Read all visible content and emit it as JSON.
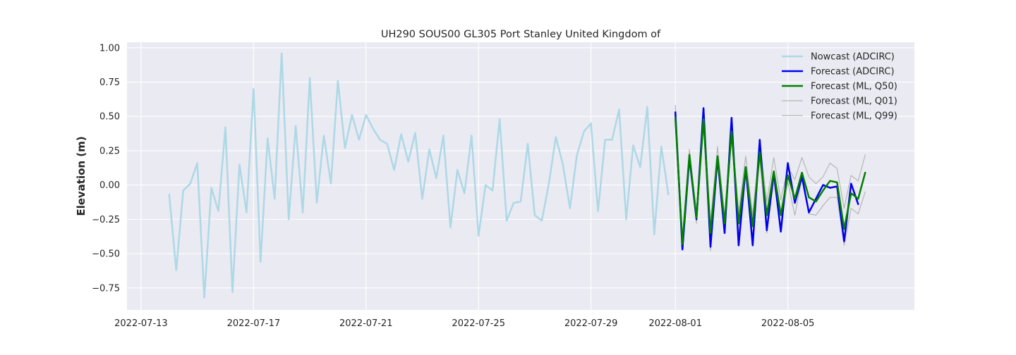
{
  "chart_data": {
    "type": "line",
    "title": "UH290 SOUS00 GL305 Port Stanley United Kingdom of",
    "xlabel": "",
    "ylabel": "Elevation (m)",
    "xlim": [
      "2022-07-12T12:00",
      "2022-08-09T12:00"
    ],
    "ylim": [
      -0.91,
      1.04
    ],
    "x_ticks": [
      "2022-07-13",
      "2022-07-17",
      "2022-07-21",
      "2022-07-25",
      "2022-07-29",
      "2022-08-01",
      "2022-08-05"
    ],
    "y_ticks": [
      1.0,
      0.75,
      0.5,
      0.25,
      0.0,
      -0.25,
      -0.5,
      -0.75
    ],
    "y_tick_labels": [
      "1.00",
      "0.75",
      "0.50",
      "0.25",
      "0.00",
      "−0.25",
      "−0.50",
      "−0.75"
    ],
    "grid": true,
    "legend_position": "top-right",
    "series": [
      {
        "name": "Nowcast (ADCIRC)",
        "color": "#add8e6",
        "x": [
          "2022-07-14T00:00",
          "2022-07-14T06:00",
          "2022-07-14T12:00",
          "2022-07-14T18:00",
          "2022-07-15T00:00",
          "2022-07-15T06:00",
          "2022-07-15T12:00",
          "2022-07-15T18:00",
          "2022-07-16T00:00",
          "2022-07-16T06:00",
          "2022-07-16T12:00",
          "2022-07-16T18:00",
          "2022-07-17T00:00",
          "2022-07-17T06:00",
          "2022-07-17T12:00",
          "2022-07-17T18:00",
          "2022-07-18T00:00",
          "2022-07-18T06:00",
          "2022-07-18T12:00",
          "2022-07-18T18:00",
          "2022-07-19T00:00",
          "2022-07-19T06:00",
          "2022-07-19T12:00",
          "2022-07-19T18:00",
          "2022-07-20T00:00",
          "2022-07-20T06:00",
          "2022-07-20T12:00",
          "2022-07-20T18:00",
          "2022-07-21T00:00",
          "2022-07-21T06:00",
          "2022-07-21T12:00",
          "2022-07-21T18:00",
          "2022-07-22T00:00",
          "2022-07-22T06:00",
          "2022-07-22T12:00",
          "2022-07-22T18:00",
          "2022-07-23T00:00",
          "2022-07-23T06:00",
          "2022-07-23T12:00",
          "2022-07-23T18:00",
          "2022-07-24T00:00",
          "2022-07-24T06:00",
          "2022-07-24T12:00",
          "2022-07-24T18:00",
          "2022-07-25T00:00",
          "2022-07-25T06:00",
          "2022-07-25T12:00",
          "2022-07-25T18:00",
          "2022-07-26T00:00",
          "2022-07-26T06:00",
          "2022-07-26T12:00",
          "2022-07-26T18:00",
          "2022-07-27T00:00",
          "2022-07-27T06:00",
          "2022-07-27T12:00",
          "2022-07-27T18:00",
          "2022-07-28T00:00",
          "2022-07-28T06:00",
          "2022-07-28T12:00",
          "2022-07-28T18:00",
          "2022-07-29T00:00",
          "2022-07-29T06:00",
          "2022-07-29T12:00",
          "2022-07-29T18:00",
          "2022-07-30T00:00",
          "2022-07-30T06:00",
          "2022-07-30T12:00",
          "2022-07-30T18:00",
          "2022-07-31T00:00",
          "2022-07-31T06:00",
          "2022-07-31T12:00",
          "2022-07-31T18:00"
        ],
        "values": [
          -0.07,
          -0.62,
          -0.04,
          0.01,
          0.16,
          -0.82,
          -0.02,
          -0.19,
          0.42,
          -0.78,
          0.15,
          -0.2,
          0.7,
          -0.56,
          0.34,
          -0.1,
          0.96,
          -0.25,
          0.43,
          -0.2,
          0.78,
          -0.13,
          0.36,
          0.01,
          0.76,
          0.27,
          0.51,
          0.33,
          0.51,
          0.41,
          0.33,
          0.3,
          0.11,
          0.37,
          0.17,
          0.38,
          -0.1,
          0.26,
          0.05,
          0.36,
          -0.31,
          0.11,
          -0.06,
          0.36,
          -0.37,
          0.0,
          -0.04,
          0.48,
          -0.26,
          -0.13,
          -0.12,
          0.3,
          -0.22,
          -0.26,
          0.01,
          0.35,
          0.15,
          -0.17,
          0.22,
          0.39,
          0.45,
          -0.19,
          0.33,
          0.33,
          0.55,
          -0.25,
          0.29,
          0.13,
          0.57,
          -0.36,
          0.28,
          -0.07
        ]
      },
      {
        "name": "Forecast (ADCIRC)",
        "color": "#0000ee",
        "x": [
          "2022-08-01T00:00",
          "2022-08-01T06:00",
          "2022-08-01T12:00",
          "2022-08-01T18:00",
          "2022-08-02T00:00",
          "2022-08-02T06:00",
          "2022-08-02T12:00",
          "2022-08-02T18:00",
          "2022-08-03T00:00",
          "2022-08-03T06:00",
          "2022-08-03T12:00",
          "2022-08-03T18:00",
          "2022-08-04T00:00",
          "2022-08-04T06:00",
          "2022-08-04T12:00",
          "2022-08-04T18:00",
          "2022-08-05T00:00",
          "2022-08-05T06:00",
          "2022-08-05T12:00",
          "2022-08-05T18:00",
          "2022-08-06T00:00",
          "2022-08-06T06:00",
          "2022-08-06T12:00",
          "2022-08-06T18:00",
          "2022-08-07T00:00",
          "2022-08-07T06:00",
          "2022-08-07T12:00"
        ],
        "values": [
          0.53,
          -0.47,
          0.2,
          -0.25,
          0.56,
          -0.45,
          0.2,
          -0.35,
          0.49,
          -0.44,
          0.13,
          -0.44,
          0.33,
          -0.33,
          0.09,
          -0.34,
          0.16,
          -0.13,
          0.06,
          -0.2,
          -0.1,
          0.0,
          -0.02,
          -0.01,
          -0.41,
          0.01,
          -0.14
        ]
      },
      {
        "name": "Forecast (ML, Q50)",
        "color": "#008000",
        "x": [
          "2022-08-01T00:00",
          "2022-08-01T06:00",
          "2022-08-01T12:00",
          "2022-08-01T18:00",
          "2022-08-02T00:00",
          "2022-08-02T06:00",
          "2022-08-02T12:00",
          "2022-08-02T18:00",
          "2022-08-03T00:00",
          "2022-08-03T06:00",
          "2022-08-03T12:00",
          "2022-08-03T18:00",
          "2022-08-04T00:00",
          "2022-08-04T06:00",
          "2022-08-04T12:00",
          "2022-08-04T18:00",
          "2022-08-05T00:00",
          "2022-08-05T06:00",
          "2022-08-05T12:00",
          "2022-08-05T18:00",
          "2022-08-06T00:00",
          "2022-08-06T06:00",
          "2022-08-06T12:00",
          "2022-08-06T18:00",
          "2022-08-07T00:00",
          "2022-08-07T06:00",
          "2022-08-07T12:00",
          "2022-08-07T18:00"
        ],
        "values": [
          0.49,
          -0.43,
          0.22,
          -0.24,
          0.48,
          -0.35,
          0.21,
          -0.28,
          0.39,
          -0.28,
          0.13,
          -0.3,
          0.24,
          -0.22,
          0.1,
          -0.22,
          0.07,
          -0.1,
          0.09,
          -0.09,
          -0.12,
          -0.04,
          0.03,
          0.02,
          -0.32,
          -0.06,
          -0.1,
          0.09
        ]
      },
      {
        "name": "Forecast (ML, Q01)",
        "color": "#b0b0b0",
        "x": [
          "2022-08-01T00:00",
          "2022-08-01T06:00",
          "2022-08-01T12:00",
          "2022-08-01T18:00",
          "2022-08-02T00:00",
          "2022-08-02T06:00",
          "2022-08-02T12:00",
          "2022-08-02T18:00",
          "2022-08-03T00:00",
          "2022-08-03T06:00",
          "2022-08-03T12:00",
          "2022-08-03T18:00",
          "2022-08-04T00:00",
          "2022-08-04T06:00",
          "2022-08-04T12:00",
          "2022-08-04T18:00",
          "2022-08-05T00:00",
          "2022-08-05T06:00",
          "2022-08-05T12:00",
          "2022-08-05T18:00",
          "2022-08-06T00:00",
          "2022-08-06T06:00",
          "2022-08-06T12:00",
          "2022-08-06T18:00",
          "2022-08-07T00:00",
          "2022-08-07T06:00",
          "2022-08-07T12:00",
          "2022-08-07T18:00"
        ],
        "values": [
          0.45,
          -0.46,
          0.18,
          -0.28,
          0.44,
          -0.48,
          0.15,
          -0.35,
          0.35,
          -0.35,
          0.07,
          -0.37,
          0.19,
          -0.35,
          0.03,
          -0.29,
          0.02,
          -0.22,
          0.05,
          -0.21,
          -0.22,
          -0.15,
          -0.09,
          -0.09,
          -0.44,
          -0.17,
          -0.21,
          -0.05
        ]
      },
      {
        "name": "Forecast (ML, Q99)",
        "color": "#b0b0b0",
        "x": [
          "2022-08-01T00:00",
          "2022-08-01T06:00",
          "2022-08-01T12:00",
          "2022-08-01T18:00",
          "2022-08-02T00:00",
          "2022-08-02T06:00",
          "2022-08-02T12:00",
          "2022-08-02T18:00",
          "2022-08-03T00:00",
          "2022-08-03T06:00",
          "2022-08-03T12:00",
          "2022-08-03T18:00",
          "2022-08-04T00:00",
          "2022-08-04T06:00",
          "2022-08-04T12:00",
          "2022-08-04T18:00",
          "2022-08-05T00:00",
          "2022-08-05T06:00",
          "2022-08-05T12:00",
          "2022-08-05T18:00",
          "2022-08-06T00:00",
          "2022-08-06T06:00",
          "2022-08-06T12:00",
          "2022-08-06T18:00",
          "2022-08-07T00:00",
          "2022-08-07T06:00",
          "2022-08-07T12:00",
          "2022-08-07T18:00"
        ],
        "values": [
          0.58,
          -0.38,
          0.26,
          -0.2,
          0.53,
          -0.27,
          0.28,
          -0.22,
          0.44,
          -0.2,
          0.21,
          -0.22,
          0.31,
          -0.12,
          0.2,
          -0.11,
          0.13,
          0.04,
          0.2,
          0.06,
          0.01,
          0.06,
          0.16,
          0.12,
          -0.17,
          0.07,
          0.03,
          0.22
        ]
      }
    ]
  }
}
